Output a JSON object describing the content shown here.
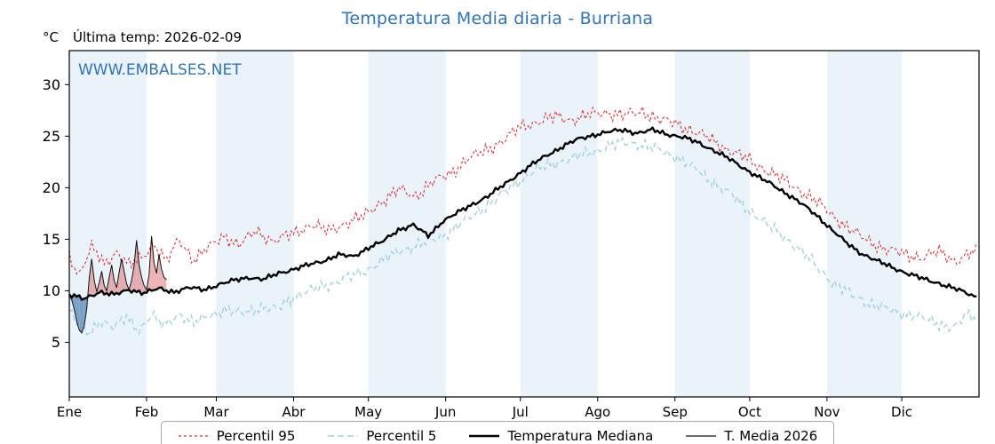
{
  "title": "Temperatura Media diaria - Burriana",
  "header": {
    "unit": "°C",
    "last_temp": "Última temp: 2026-02-09"
  },
  "watermark": "WWW.EMBALSES.NET",
  "colors": {
    "title": "#3173b4",
    "watermark": "#3173b4",
    "p95": "#d83434",
    "p5": "#9fcfe3",
    "median": "#000000",
    "t2026": "#111111",
    "band": "#eaf2fa",
    "fill_above": "#d96a6a",
    "fill_below": "#4a80b0",
    "axis": "#000000"
  },
  "legend": {
    "items": [
      {
        "key": "p95",
        "label": "Percentil 95"
      },
      {
        "key": "p5",
        "label": "Percentil 5"
      },
      {
        "key": "median",
        "label": "Temperatura Mediana"
      },
      {
        "key": "t2026",
        "label": "T. Media 2026"
      }
    ]
  },
  "chart_data": {
    "type": "line",
    "title": "Temperatura Media diaria - Burriana",
    "xlabel": "",
    "ylabel": "°C",
    "ylim": [
      -0.3,
      33.3
    ],
    "yticks": [
      5,
      10,
      15,
      20,
      25,
      30
    ],
    "days": 365,
    "x_tick_labels": [
      "Ene",
      "Feb",
      "Mar",
      "Abr",
      "May",
      "Jun",
      "Jul",
      "Ago",
      "Sep",
      "Oct",
      "Nov",
      "Dic"
    ],
    "month_start_days": [
      0,
      31,
      59,
      90,
      120,
      151,
      181,
      212,
      243,
      273,
      304,
      334
    ],
    "grid": "vertical-month-bands",
    "legend_position": "bottom",
    "series": [
      {
        "name": "Percentil 95",
        "kind": "control_points",
        "noise_amp": 0.85,
        "seed": 1.3,
        "points": [
          [
            0,
            13.4
          ],
          [
            4,
            11.6
          ],
          [
            9,
            14.2
          ],
          [
            14,
            12.6
          ],
          [
            19,
            13.8
          ],
          [
            24,
            12.4
          ],
          [
            29,
            13.2
          ],
          [
            34,
            14.6
          ],
          [
            39,
            12.8
          ],
          [
            44,
            15.0
          ],
          [
            50,
            13.0
          ],
          [
            56,
            14.2
          ],
          [
            62,
            15.4
          ],
          [
            68,
            14.4
          ],
          [
            75,
            15.8
          ],
          [
            82,
            14.8
          ],
          [
            90,
            15.6
          ],
          [
            97,
            16.4
          ],
          [
            104,
            15.8
          ],
          [
            111,
            16.6
          ],
          [
            118,
            17.2
          ],
          [
            125,
            18.6
          ],
          [
            132,
            19.8
          ],
          [
            139,
            19.2
          ],
          [
            146,
            20.6
          ],
          [
            153,
            21.4
          ],
          [
            160,
            22.8
          ],
          [
            167,
            23.6
          ],
          [
            174,
            24.6
          ],
          [
            181,
            25.9
          ],
          [
            188,
            26.4
          ],
          [
            195,
            26.9
          ],
          [
            202,
            26.6
          ],
          [
            209,
            27.1
          ],
          [
            216,
            27.3
          ],
          [
            223,
            27.0
          ],
          [
            230,
            27.4
          ],
          [
            237,
            26.6
          ],
          [
            244,
            26.2
          ],
          [
            251,
            25.4
          ],
          [
            258,
            24.6
          ],
          [
            265,
            23.6
          ],
          [
            272,
            22.8
          ],
          [
            279,
            21.8
          ],
          [
            286,
            20.8
          ],
          [
            293,
            19.8
          ],
          [
            300,
            18.6
          ],
          [
            307,
            17.2
          ],
          [
            314,
            15.8
          ],
          [
            321,
            14.8
          ],
          [
            328,
            14.0
          ],
          [
            335,
            13.6
          ],
          [
            342,
            13.2
          ],
          [
            349,
            13.8
          ],
          [
            356,
            12.9
          ],
          [
            364,
            13.9
          ]
        ]
      },
      {
        "name": "Percentil 5",
        "kind": "control_points",
        "noise_amp": 0.75,
        "seed": 4.1,
        "points": [
          [
            0,
            8.2
          ],
          [
            4,
            6.4
          ],
          [
            8,
            5.8
          ],
          [
            13,
            7.2
          ],
          [
            18,
            6.4
          ],
          [
            23,
            7.4
          ],
          [
            28,
            6.2
          ],
          [
            33,
            7.6
          ],
          [
            38,
            6.6
          ],
          [
            44,
            7.8
          ],
          [
            50,
            6.8
          ],
          [
            56,
            7.6
          ],
          [
            62,
            8.2
          ],
          [
            69,
            7.8
          ],
          [
            76,
            8.4
          ],
          [
            83,
            8.2
          ],
          [
            90,
            9.4
          ],
          [
            97,
            10.0
          ],
          [
            104,
            10.6
          ],
          [
            111,
            11.2
          ],
          [
            118,
            11.8
          ],
          [
            125,
            12.8
          ],
          [
            132,
            13.8
          ],
          [
            139,
            14.4
          ],
          [
            146,
            14.9
          ],
          [
            153,
            15.8
          ],
          [
            160,
            17.0
          ],
          [
            167,
            18.2
          ],
          [
            174,
            19.4
          ],
          [
            181,
            20.8
          ],
          [
            188,
            21.8
          ],
          [
            195,
            22.4
          ],
          [
            202,
            22.9
          ],
          [
            209,
            23.4
          ],
          [
            216,
            24.0
          ],
          [
            223,
            24.4
          ],
          [
            230,
            24.2
          ],
          [
            237,
            23.6
          ],
          [
            244,
            23.0
          ],
          [
            251,
            21.8
          ],
          [
            258,
            20.6
          ],
          [
            265,
            19.4
          ],
          [
            272,
            18.0
          ],
          [
            279,
            16.6
          ],
          [
            286,
            15.4
          ],
          [
            293,
            14.0
          ],
          [
            300,
            12.4
          ],
          [
            307,
            10.6
          ],
          [
            314,
            9.6
          ],
          [
            321,
            8.8
          ],
          [
            328,
            8.2
          ],
          [
            335,
            7.8
          ],
          [
            342,
            7.4
          ],
          [
            349,
            6.8
          ],
          [
            355,
            6.4
          ],
          [
            360,
            7.6
          ],
          [
            364,
            7.4
          ]
        ]
      },
      {
        "name": "Temperatura Mediana",
        "kind": "control_points",
        "noise_amp": 0.3,
        "seed": 2.2,
        "points": [
          [
            0,
            9.6
          ],
          [
            6,
            9.2
          ],
          [
            12,
            9.9
          ],
          [
            18,
            9.6
          ],
          [
            24,
            10.1
          ],
          [
            30,
            9.8
          ],
          [
            36,
            10.2
          ],
          [
            42,
            9.9
          ],
          [
            48,
            10.3
          ],
          [
            54,
            10.1
          ],
          [
            60,
            10.6
          ],
          [
            66,
            11.0
          ],
          [
            72,
            11.3
          ],
          [
            78,
            11.1
          ],
          [
            84,
            11.7
          ],
          [
            90,
            12.1
          ],
          [
            96,
            12.5
          ],
          [
            102,
            12.9
          ],
          [
            108,
            13.5
          ],
          [
            114,
            13.3
          ],
          [
            120,
            14.2
          ],
          [
            126,
            14.8
          ],
          [
            132,
            15.9
          ],
          [
            138,
            16.4
          ],
          [
            144,
            15.3
          ],
          [
            150,
            16.8
          ],
          [
            156,
            17.6
          ],
          [
            162,
            18.4
          ],
          [
            168,
            19.2
          ],
          [
            174,
            20.2
          ],
          [
            180,
            21.3
          ],
          [
            186,
            22.3
          ],
          [
            192,
            23.2
          ],
          [
            198,
            24.0
          ],
          [
            204,
            24.7
          ],
          [
            210,
            25.1
          ],
          [
            216,
            25.4
          ],
          [
            222,
            25.6
          ],
          [
            228,
            25.3
          ],
          [
            234,
            25.6
          ],
          [
            240,
            25.2
          ],
          [
            246,
            24.9
          ],
          [
            252,
            24.4
          ],
          [
            258,
            23.7
          ],
          [
            264,
            22.9
          ],
          [
            270,
            22.0
          ],
          [
            276,
            21.1
          ],
          [
            282,
            20.3
          ],
          [
            288,
            19.4
          ],
          [
            294,
            18.4
          ],
          [
            300,
            17.3
          ],
          [
            306,
            15.9
          ],
          [
            312,
            14.6
          ],
          [
            318,
            13.6
          ],
          [
            324,
            12.9
          ],
          [
            330,
            12.3
          ],
          [
            336,
            11.7
          ],
          [
            342,
            11.2
          ],
          [
            348,
            10.8
          ],
          [
            354,
            10.3
          ],
          [
            360,
            9.8
          ],
          [
            364,
            9.4
          ]
        ]
      },
      {
        "name": "T. Media 2026",
        "kind": "daily",
        "start_day": 0,
        "values": [
          9.6,
          9.1,
          8.2,
          7.0,
          6.2,
          5.9,
          6.6,
          8.2,
          11.2,
          13.1,
          11.0,
          9.9,
          10.8,
          11.9,
          10.5,
          10.0,
          11.3,
          12.5,
          11.0,
          10.3,
          11.8,
          13.1,
          11.9,
          10.7,
          10.1,
          11.0,
          12.4,
          14.9,
          12.5,
          11.3,
          10.5,
          10.1,
          11.6,
          15.3,
          12.7,
          11.7,
          13.5,
          12.1,
          11.3,
          11.1
        ]
      }
    ]
  }
}
